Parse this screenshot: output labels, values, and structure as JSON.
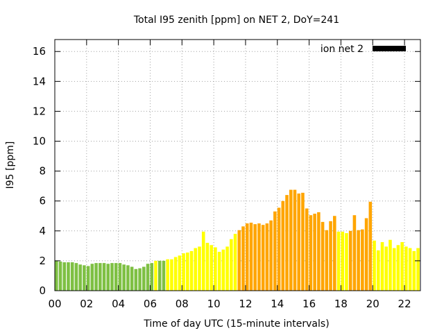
{
  "chart_data": {
    "type": "bar",
    "title": "Total I95 zenith [ppm] on NET 2, DoY=241",
    "xlabel": "Time of day UTC (15-minute intervals)",
    "ylabel": "I95 [ppm]",
    "xlim": [
      0,
      23
    ],
    "ylim": [
      0,
      16.8
    ],
    "x_ticks": [
      "00",
      "02",
      "04",
      "06",
      "08",
      "10",
      "12",
      "14",
      "16",
      "18",
      "20",
      "22"
    ],
    "y_ticks": [
      "0",
      "2",
      "4",
      "6",
      "8",
      "10",
      "12",
      "14",
      "16"
    ],
    "grid": true,
    "legend": {
      "label": "ion net 2",
      "color": "#000000",
      "position": "top-right"
    },
    "interval_minutes": 15,
    "start_time": "00:00",
    "values": [
      2.0,
      1.95,
      1.9,
      1.9,
      1.9,
      1.85,
      1.75,
      1.7,
      1.65,
      1.8,
      1.85,
      1.85,
      1.85,
      1.8,
      1.85,
      1.85,
      1.85,
      1.75,
      1.7,
      1.6,
      1.45,
      1.5,
      1.6,
      1.8,
      1.85,
      2.0,
      2.0,
      2.0,
      2.1,
      2.1,
      2.25,
      2.35,
      2.5,
      2.55,
      2.65,
      2.85,
      2.95,
      3.95,
      3.2,
      3.05,
      2.9,
      2.6,
      2.75,
      2.95,
      3.45,
      3.8,
      4.05,
      4.3,
      4.5,
      4.55,
      4.45,
      4.5,
      4.4,
      4.5,
      4.7,
      5.3,
      5.55,
      6.0,
      6.4,
      6.75,
      6.75,
      6.5,
      6.55,
      5.5,
      5.05,
      5.15,
      5.25,
      4.6,
      4.05,
      4.65,
      5.0,
      3.95,
      3.95,
      3.85,
      4.0,
      5.05,
      4.05,
      4.1,
      4.85,
      5.95,
      3.35,
      2.7,
      3.25,
      2.95,
      3.4,
      2.85,
      3.05,
      3.25,
      2.95,
      2.85,
      2.65,
      2.85
    ],
    "colors": [
      "#7ec043",
      "#ffff00",
      "#ffa500"
    ],
    "value_colors": [
      0,
      0,
      0,
      0,
      0,
      0,
      0,
      0,
      0,
      0,
      0,
      0,
      0,
      0,
      0,
      0,
      0,
      0,
      0,
      0,
      0,
      0,
      0,
      0,
      0,
      1,
      0,
      0,
      1,
      1,
      1,
      1,
      1,
      1,
      1,
      1,
      1,
      1,
      1,
      1,
      1,
      1,
      1,
      1,
      1,
      1,
      2,
      2,
      2,
      2,
      2,
      2,
      2,
      2,
      2,
      2,
      2,
      2,
      2,
      2,
      2,
      2,
      2,
      2,
      2,
      2,
      2,
      2,
      2,
      2,
      2,
      1,
      1,
      1,
      2,
      2,
      2,
      2,
      2,
      2,
      1,
      1,
      1,
      1,
      1,
      1,
      1,
      1,
      1,
      1,
      1,
      1
    ]
  }
}
